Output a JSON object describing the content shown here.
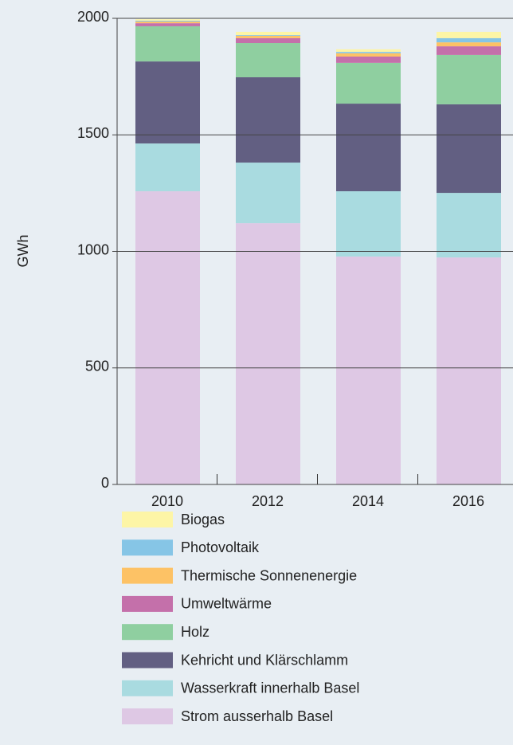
{
  "chart_data": {
    "type": "stacked_bar",
    "y_label": "GWh",
    "categories": [
      "2010",
      "2012",
      "2014",
      "2016"
    ],
    "series": [
      {
        "name": "Strom ausserhalb Basel",
        "color": "#dec8e4",
        "values": [
          1258,
          1121,
          978,
          974
        ]
      },
      {
        "name": "Wasserkraft innerhalb Basel",
        "color": "#a9dbe0",
        "values": [
          205,
          260,
          280,
          277
        ]
      },
      {
        "name": "Kehricht und Klärschlamm",
        "color": "#625f82",
        "values": [
          352,
          366,
          376,
          380
        ]
      },
      {
        "name": "Holz",
        "color": "#8fcfa0",
        "values": [
          151,
          147,
          175,
          212
        ]
      },
      {
        "name": "Umweltwärme",
        "color": "#c470aa",
        "values": [
          13,
          21,
          27,
          37
        ]
      },
      {
        "name": "Thermische Sonnenenergie",
        "color": "#fdc265",
        "values": [
          7,
          10,
          14,
          17
        ]
      },
      {
        "name": "Photovoltaik",
        "color": "#86c5e6",
        "values": [
          4,
          3,
          6,
          18
        ]
      },
      {
        "name": "Biogas",
        "color": "#fdf5a6",
        "values": [
          6,
          14,
          11,
          27
        ]
      }
    ],
    "ylim": [
      0,
      2000
    ],
    "yticks": [
      0,
      500,
      1000,
      1500,
      2000
    ],
    "grid": true
  }
}
